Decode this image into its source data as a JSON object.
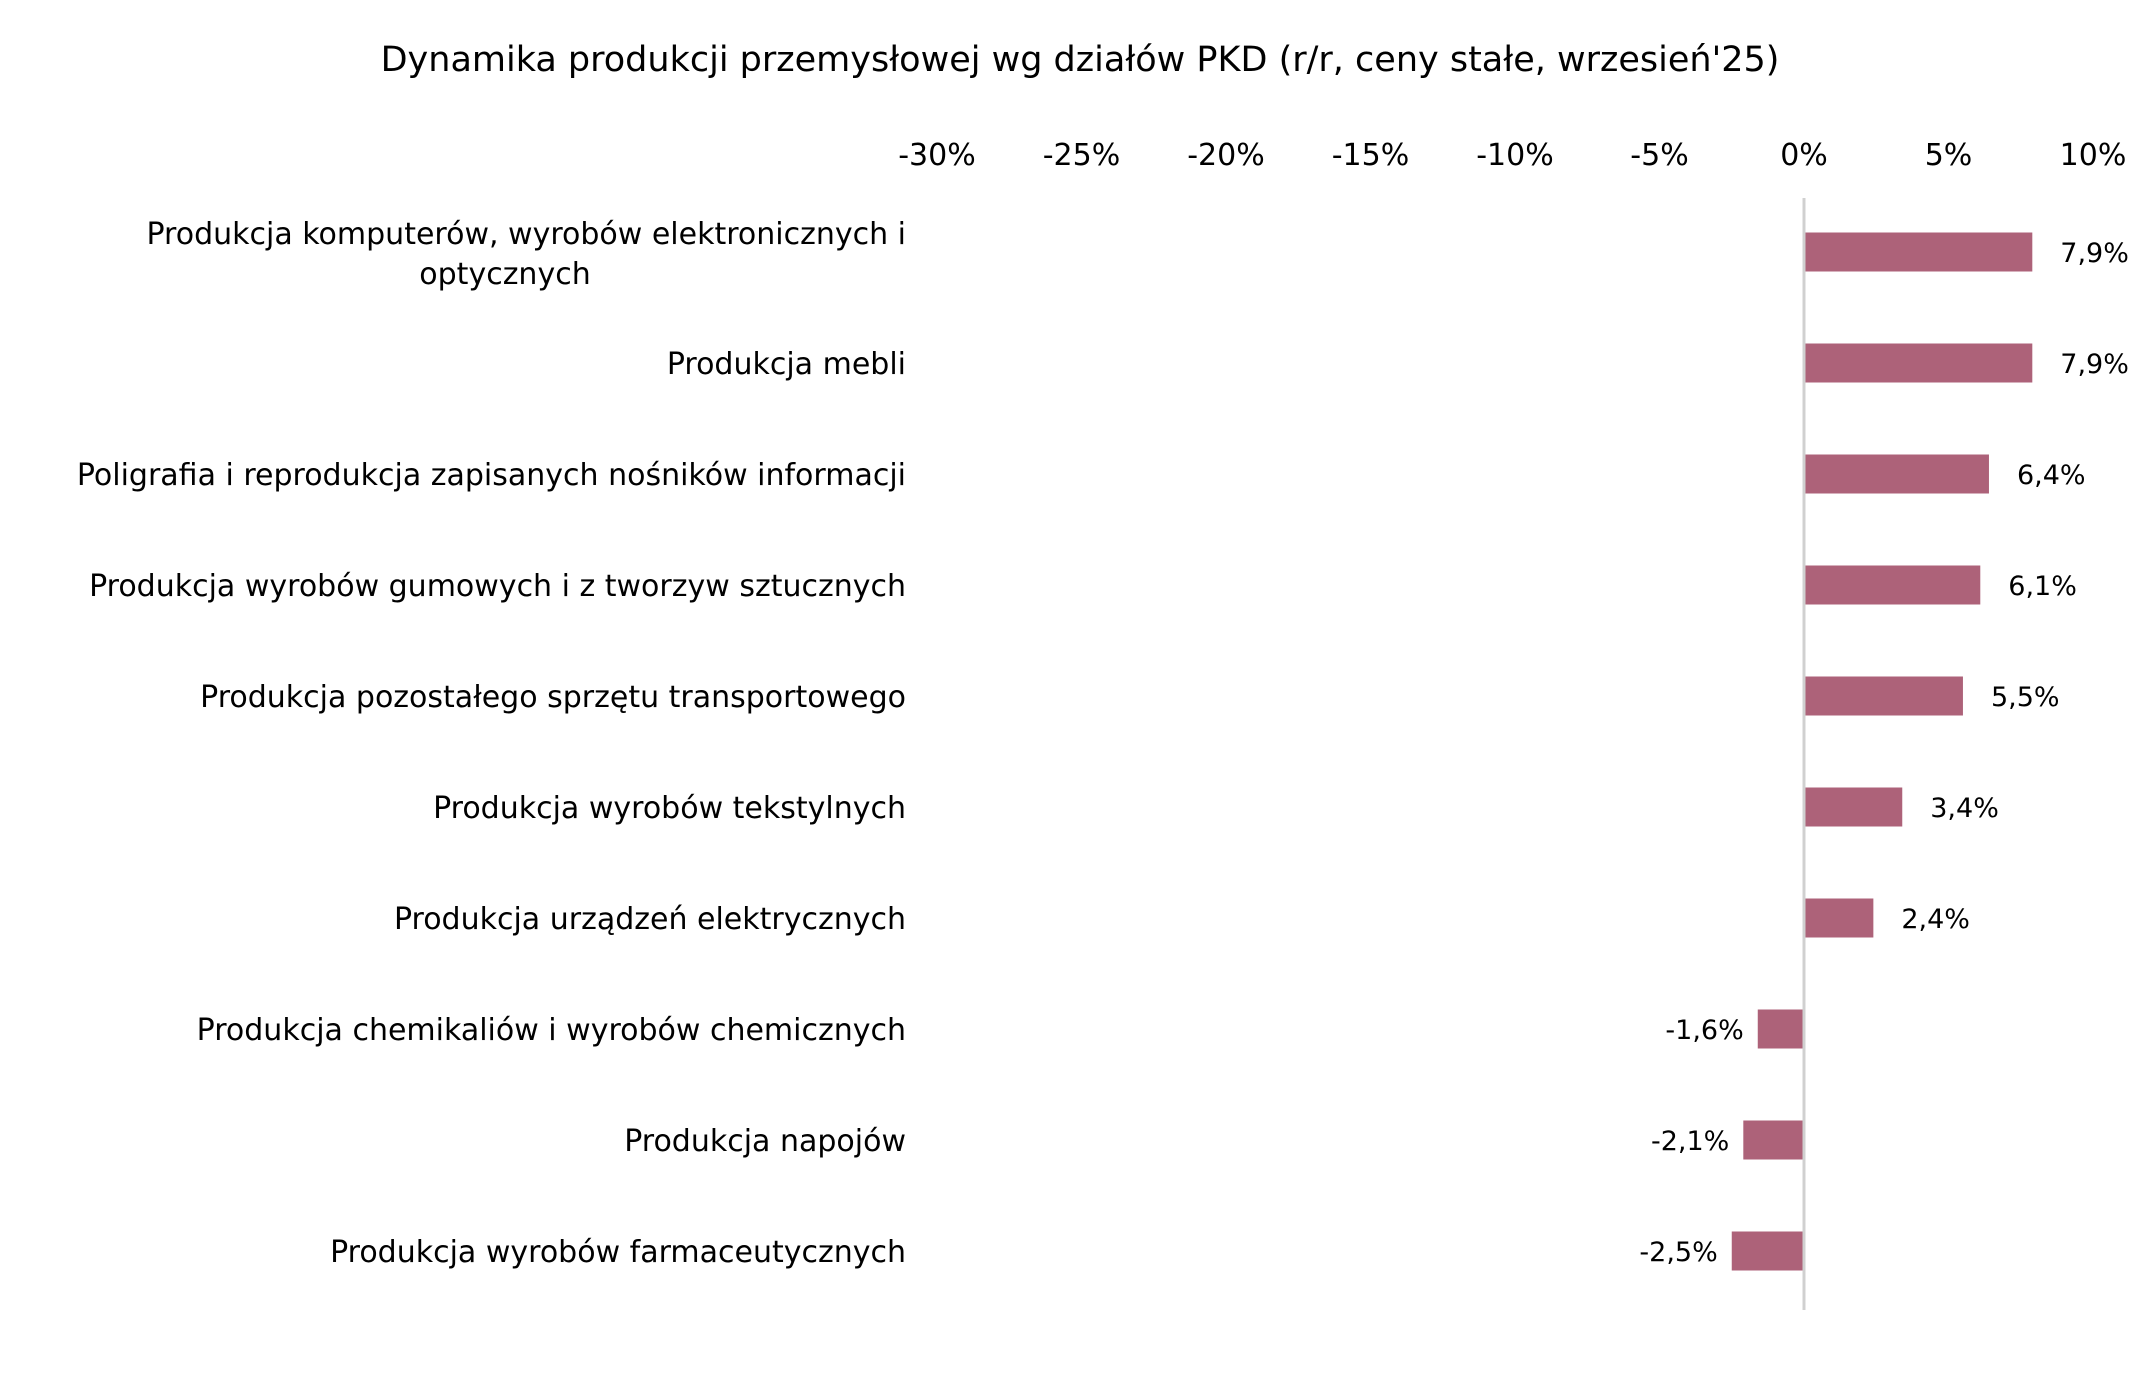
{
  "chart_data": {
    "type": "bar",
    "orientation": "horizontal",
    "title": "Dynamika produkcji przemysłowej wg działów PKD (r/r, ceny stałe, wrzesień'25)",
    "xlabel": "",
    "ylabel": "",
    "xlim": [
      -30,
      10
    ],
    "x_ticks": [
      "-30%",
      "-25%",
      "-20%",
      "-15%",
      "-10%",
      "-5%",
      "0%",
      "5%",
      "10%"
    ],
    "x_tick_values": [
      -30,
      -25,
      -20,
      -15,
      -10,
      -5,
      0,
      5,
      10
    ],
    "x_axis_position": "top",
    "grid": false,
    "legend": "none",
    "bar_color": "#AD6279",
    "categories": [
      [
        "Produkcja komputerów, wyrobów elektronicznych i",
        "optycznych"
      ],
      [
        "Produkcja mebli"
      ],
      [
        "Poligrafia i reprodukcja zapisanych nośników informacji"
      ],
      [
        "Produkcja wyrobów gumowych i z tworzyw sztucznych"
      ],
      [
        "Produkcja pozostałego sprzętu transportowego"
      ],
      [
        "Produkcja wyrobów tekstylnych"
      ],
      [
        "Produkcja urządzeń elektrycznych"
      ],
      [
        "Produkcja chemikaliów i wyrobów chemicznych"
      ],
      [
        "Produkcja napojów "
      ],
      [
        "Produkcja wyrobów farmaceutycznych"
      ]
    ],
    "values": [
      7.9,
      7.9,
      6.4,
      6.1,
      5.5,
      3.4,
      2.4,
      -1.6,
      -2.1,
      -2.5
    ],
    "data_labels": [
      "7,9%",
      "7,9%",
      "6,4%",
      "6,1%",
      "5,5%",
      "3,4%",
      "2,4%",
      "-1,6%",
      "-2,1%",
      "-2,5%"
    ]
  }
}
